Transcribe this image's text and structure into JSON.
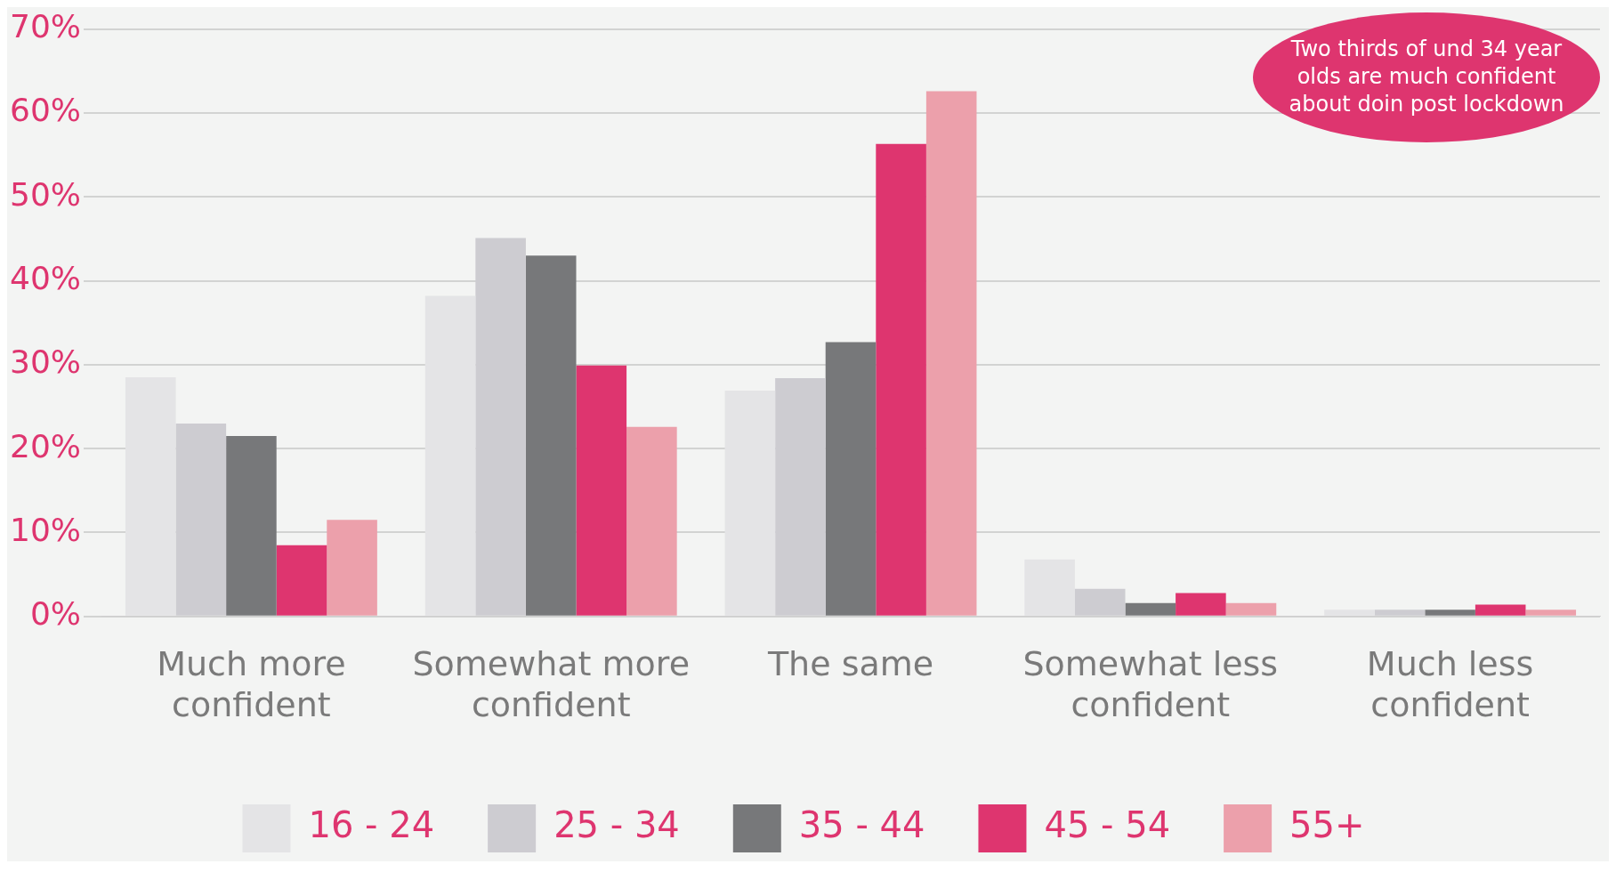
{
  "chart_data": {
    "type": "bar",
    "categories": [
      "Much more confident",
      "Somewhat more confident",
      "The same",
      "Somewhat less confident",
      "Much less confident"
    ],
    "series": [
      {
        "name": "16 - 24",
        "color": "#e4e4e6",
        "values": [
          28.5,
          38.2,
          26.9,
          6.8,
          0.8
        ]
      },
      {
        "name": "25 - 34",
        "color": "#cdccd1",
        "values": [
          23.0,
          45.1,
          28.4,
          3.3,
          0.8
        ]
      },
      {
        "name": "35 - 44",
        "color": "#77787a",
        "values": [
          21.5,
          43.0,
          32.7,
          1.6,
          0.8
        ]
      },
      {
        "name": "45 - 54",
        "color": "#de356f",
        "values": [
          8.5,
          29.9,
          56.3,
          2.8,
          1.4
        ]
      },
      {
        "name": "55+",
        "color": "#eca0ab",
        "values": [
          11.5,
          22.6,
          62.6,
          1.6,
          0.8
        ]
      }
    ],
    "ylim": [
      0,
      70
    ],
    "yticks": [
      {
        "value": 0,
        "label": "0%"
      },
      {
        "value": 10,
        "label": "10%"
      },
      {
        "value": 20,
        "label": "20%"
      },
      {
        "value": 30,
        "label": "30%"
      },
      {
        "value": 40,
        "label": "40%"
      },
      {
        "value": 50,
        "label": "50%"
      },
      {
        "value": 60,
        "label": "60%"
      },
      {
        "value": 70,
        "label": "70%"
      }
    ],
    "grid": "y",
    "legend": "bottom",
    "annotations": [
      "Two thirds of und 34 year olds are much confident about doin post lockdown"
    ]
  }
}
